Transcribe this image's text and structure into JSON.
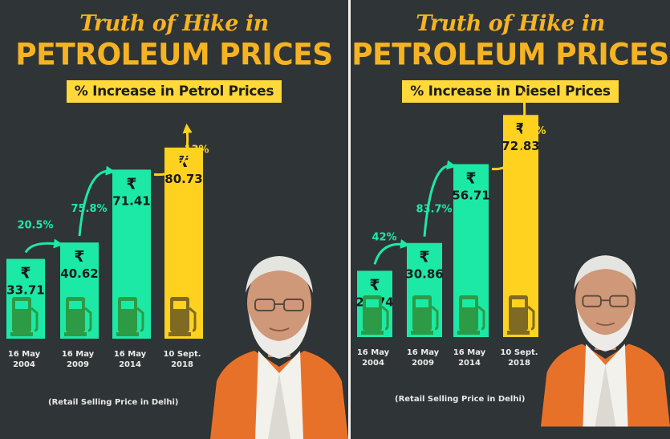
{
  "chart_data": [
    {
      "type": "bar",
      "title": "Truth of Hike in",
      "title_line2": "PETROLEUM PRICES",
      "subtitle": "% Increase in Petrol Prices",
      "currency_symbol": "₹",
      "categories": [
        "16 May 2004",
        "16 May 2009",
        "16 May 2014",
        "10 Sept. 2018"
      ],
      "category_lines": [
        [
          "16 May",
          "2004"
        ],
        [
          "16 May",
          "2009"
        ],
        [
          "16 May",
          "2014"
        ],
        [
          "10 Sept.",
          "2018"
        ]
      ],
      "values": [
        33.71,
        40.62,
        71.41,
        80.73
      ],
      "value_labels": [
        "33.71",
        "40.62",
        "71.41",
        "80.73"
      ],
      "changes": [
        "20.5%",
        "75.8%",
        "13%"
      ],
      "footnote": "(Retail Selling Price in Delhi)",
      "colors": {
        "bar": "#1de9a6",
        "last_bar": "#ffd21f",
        "pump": "#2d9b45",
        "last_pump": "#7f6a24",
        "arrow_green": "#1de9a6",
        "arrow_yellow": "#ffd21f"
      }
    },
    {
      "type": "bar",
      "title": "Truth of Hike in",
      "title_line2": "PETROLEUM PRICES",
      "subtitle": "% Increase in Diesel Prices",
      "currency_symbol": "₹",
      "categories": [
        "16 May 2004",
        "16 May 2009",
        "16 May 2014",
        "10 Sept. 2018"
      ],
      "category_lines": [
        [
          "16 May",
          "2004"
        ],
        [
          "16 May",
          "2009"
        ],
        [
          "16 May",
          "2014"
        ],
        [
          "10 Sept.",
          "2018"
        ]
      ],
      "values": [
        21.74,
        30.86,
        56.71,
        72.83
      ],
      "value_labels": [
        "21.74",
        "30.86",
        "56.71",
        "72.83"
      ],
      "changes": [
        "42%",
        "83.7%",
        "28%"
      ],
      "footnote": "(Retail Selling Price in Delhi)",
      "colors": {
        "bar": "#1de9a6",
        "last_bar": "#ffd21f",
        "pump": "#2d9b45",
        "last_pump": "#7f6a24",
        "arrow_green": "#1de9a6",
        "arrow_yellow": "#ffd21f"
      }
    }
  ]
}
